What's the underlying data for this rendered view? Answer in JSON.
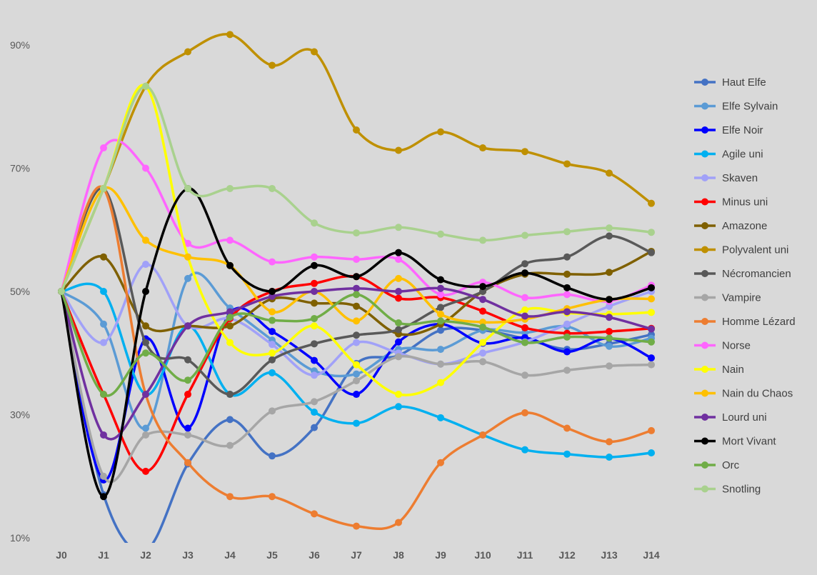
{
  "chart_data": {
    "type": "line",
    "title": "",
    "xlabel": "",
    "ylabel": "",
    "ylim": [
      10,
      95
    ],
    "yticks": [
      "10%",
      "30%",
      "50%",
      "70%",
      "90%"
    ],
    "ytick_values": [
      10,
      30,
      50,
      70,
      90
    ],
    "grid": false,
    "legend_position": "right",
    "smooth": true,
    "categories": [
      "J0",
      "J1",
      "J2",
      "J3",
      "J4",
      "J5",
      "J6",
      "J7",
      "J8",
      "J9",
      "J10",
      "J11",
      "J12",
      "J13",
      "J14"
    ],
    "series": [
      {
        "name": "Haut Elfe",
        "color": "#4472c4",
        "values": [
          50,
          17,
          8,
          22,
          29.2,
          23.3,
          27.9,
          38.3,
          39.6,
          43.7,
          43.7,
          42.3,
          40.6,
          41.5,
          43
        ]
      },
      {
        "name": "Elfe Sylvain",
        "color": "#5b9bd5",
        "values": [
          50,
          44.7,
          27.8,
          52.1,
          47.3,
          42.1,
          37.1,
          36.6,
          40.6,
          40.6,
          43.7,
          43.3,
          44.3,
          41.1,
          42.4
        ]
      },
      {
        "name": "Elfe Noir",
        "color": "#0000ff",
        "values": [
          50,
          19.4,
          42.3,
          27.8,
          46.5,
          43.5,
          38.8,
          33.3,
          41.8,
          44.7,
          41.6,
          42.5,
          40.2,
          42.4,
          39.2
        ]
      },
      {
        "name": "Agile uni",
        "color": "#00b0f0",
        "values": [
          50,
          50,
          33.3,
          44.4,
          33.3,
          36.8,
          30.4,
          28.6,
          31.3,
          29.5,
          26.7,
          24.3,
          23.6,
          23.1,
          23.8
        ]
      },
      {
        "name": "Skaven",
        "color": "#a1a1f8",
        "values": [
          50,
          41.7,
          54.4,
          44.4,
          45.6,
          41.4,
          36.4,
          41.7,
          40,
          38.2,
          40,
          41.8,
          44.7,
          47.6,
          50
        ]
      },
      {
        "name": "Minus uni",
        "color": "#ff0000",
        "values": [
          50,
          33.3,
          20.8,
          33.3,
          45.6,
          50,
          51.3,
          52.4,
          48.9,
          49,
          46.8,
          44.1,
          43.2,
          43.5,
          44
        ]
      },
      {
        "name": "Amazone",
        "color": "#7f6000",
        "values": [
          50,
          55.6,
          44.4,
          44.4,
          44.4,
          48.8,
          48.1,
          47.6,
          43.1,
          44.7,
          50,
          52.8,
          52.8,
          53.1,
          56.5
        ]
      },
      {
        "name": "Polyvalent uni",
        "color": "#bf9000",
        "values": [
          50,
          66.7,
          83.3,
          88.9,
          91.7,
          86.7,
          88.9,
          76.2,
          72.9,
          75.9,
          73.3,
          72.7,
          70.7,
          69.2,
          64.3
        ]
      },
      {
        "name": "Nécromancien",
        "color": "#595959",
        "values": [
          50,
          66.7,
          41.7,
          38.9,
          33.3,
          38.9,
          41.5,
          42.9,
          43.8,
          47.4,
          50,
          54.5,
          55.6,
          59,
          56.3
        ]
      },
      {
        "name": "Vampire",
        "color": "#a6a6a6",
        "values": [
          50,
          20,
          26.7,
          26.7,
          25,
          30.6,
          32.1,
          35.5,
          39.4,
          38.2,
          38.6,
          36.4,
          37.2,
          37.9,
          38.1
        ]
      },
      {
        "name": "Homme Lézard",
        "color": "#ed7d31",
        "values": [
          50,
          66.7,
          33.3,
          22.2,
          16.7,
          16.7,
          13.9,
          11.9,
          12.5,
          22.2,
          26.7,
          30.3,
          27.8,
          25.6,
          27.4
        ]
      },
      {
        "name": "Norse",
        "color": "#ff66ff",
        "values": [
          50,
          73.3,
          70,
          57.8,
          58.3,
          54.8,
          55.6,
          55.2,
          55.2,
          49.5,
          51.5,
          49,
          49.5,
          48.4,
          51
        ]
      },
      {
        "name": "Nain",
        "color": "#ffff00",
        "values": [
          50,
          66.7,
          83.3,
          55.6,
          41.7,
          40,
          44.4,
          38.1,
          33.3,
          35.2,
          41.7,
          47,
          46.5,
          46.3,
          46.6
        ]
      },
      {
        "name": "Nain du Chaos",
        "color": "#ffc000",
        "values": [
          50,
          66.7,
          58.3,
          55.6,
          54.2,
          46.7,
          50,
          45.2,
          52.1,
          46.3,
          45,
          45.5,
          47.2,
          48.7,
          48.8
        ]
      },
      {
        "name": "Lourd uni",
        "color": "#7030a0",
        "values": [
          50,
          26.7,
          33.3,
          44.4,
          46.7,
          49.2,
          50,
          50.5,
          50,
          50.5,
          48.7,
          46,
          46.7,
          45.8,
          43.9
        ]
      },
      {
        "name": "Mort Vivant",
        "color": "#000000",
        "values": [
          50,
          16.7,
          50,
          66.7,
          54.2,
          50,
          54.2,
          52.4,
          56.3,
          51.9,
          50.8,
          53.0,
          50.6,
          48.7,
          50.6
        ]
      },
      {
        "name": "Orc",
        "color": "#70ad47",
        "values": [
          50,
          33.3,
          40,
          35.6,
          45.8,
          45.3,
          45.6,
          49.5,
          44.9,
          45.2,
          44.2,
          41.7,
          42.6,
          42.4,
          41.8
        ]
      },
      {
        "name": "Snotling",
        "color": "#a9d18e",
        "values": [
          50,
          66.7,
          83.3,
          66.7,
          66.7,
          66.7,
          61.1,
          59.5,
          60.4,
          59.3,
          58.3,
          59.1,
          59.7,
          60.3,
          59.6
        ]
      }
    ]
  }
}
